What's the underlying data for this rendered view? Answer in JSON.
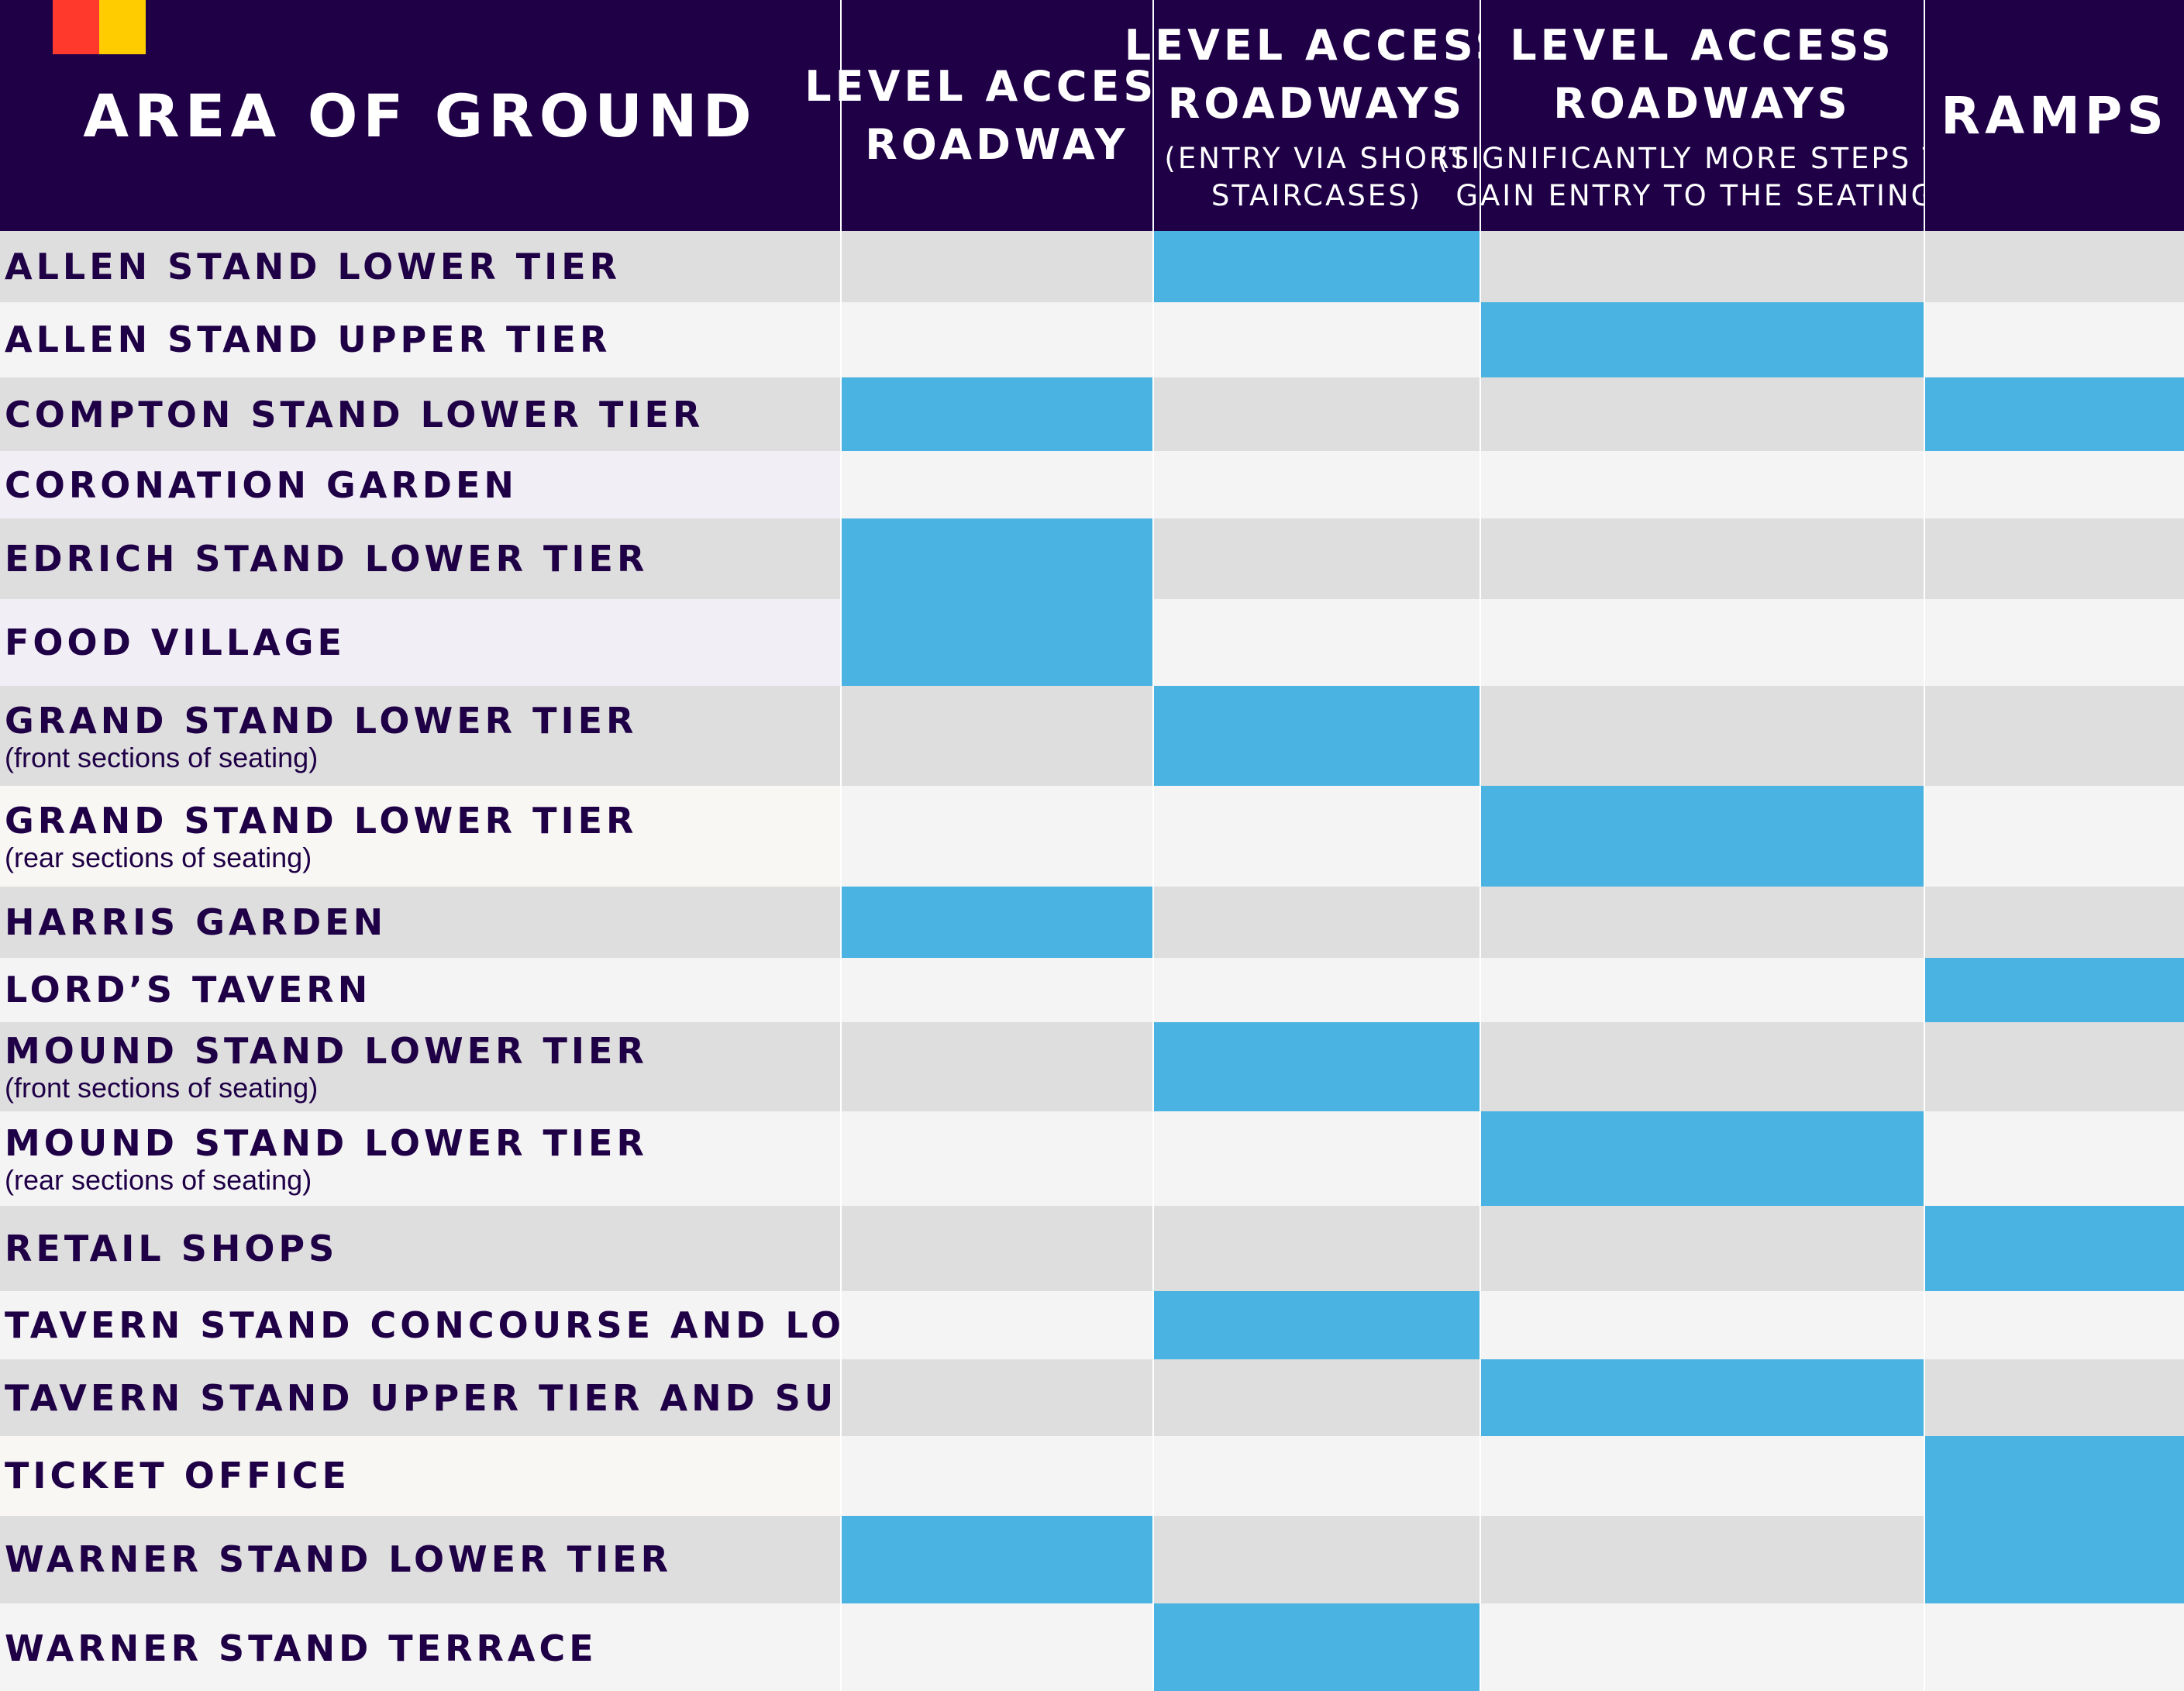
{
  "header": {
    "area": "AREA OF GROUND",
    "col1": {
      "title_1": "LEVEL ACCESS",
      "title_2": "ROADWAY",
      "sub_1": "",
      "sub_2": ""
    },
    "col2": {
      "title_1": "LEVEL ACCESS",
      "title_2": "ROADWAYS",
      "sub_1": "(ENTRY VIA SHORT",
      "sub_2": "STAIRCASES)"
    },
    "col3": {
      "title_1": "LEVEL ACCESS",
      "title_2": "ROADWAYS",
      "sub_1": "(SIGNIFICANTLY MORE STEPS TO",
      "sub_2": "GAIN ENTRY TO THE SEATING)"
    },
    "col4": {
      "title_1": "RAMPS"
    }
  },
  "brand_colors": {
    "red": "#ff3a2d",
    "yellow": "#ffcc00",
    "navy": "#1f0047",
    "mark": "#4ab3e2"
  },
  "rows": [
    {
      "name": "ALLEN STAND LOWER TIER",
      "note": "",
      "marks": [
        false,
        true,
        false,
        false
      ]
    },
    {
      "name": "ALLEN STAND UPPER TIER",
      "note": "",
      "marks": [
        false,
        false,
        true,
        false
      ]
    },
    {
      "name": "COMPTON STAND LOWER TIER",
      "note": "",
      "marks": [
        true,
        false,
        false,
        true
      ]
    },
    {
      "name": "CORONATION GARDEN",
      "note": "",
      "marks": [
        false,
        false,
        false,
        false
      ]
    },
    {
      "name": "EDRICH STAND LOWER TIER",
      "note": "",
      "marks": [
        true,
        false,
        false,
        false
      ]
    },
    {
      "name": "FOOD VILLAGE",
      "note": "",
      "marks": [
        true,
        false,
        false,
        false
      ]
    },
    {
      "name": "GRAND STAND LOWER TIER",
      "note": "(front sections of seating)",
      "marks": [
        false,
        true,
        false,
        false
      ]
    },
    {
      "name": "GRAND STAND LOWER TIER",
      "note": "(rear sections of seating)",
      "marks": [
        false,
        false,
        true,
        false
      ]
    },
    {
      "name": "HARRIS GARDEN",
      "note": "",
      "marks": [
        true,
        false,
        false,
        false
      ]
    },
    {
      "name": "LORD’S TAVERN",
      "note": "",
      "marks": [
        false,
        false,
        false,
        true
      ]
    },
    {
      "name": "MOUND STAND LOWER TIER",
      "note": "(front sections of seating)",
      "marks": [
        false,
        true,
        false,
        false
      ]
    },
    {
      "name": "MOUND STAND LOWER TIER",
      "note": "(rear sections of seating)",
      "marks": [
        false,
        false,
        true,
        false
      ]
    },
    {
      "name": "RETAIL SHOPS",
      "note": "",
      "marks": [
        false,
        false,
        false,
        true
      ]
    },
    {
      "name": "TAVERN STAND CONCOURSE AND LOWER TIER",
      "note": "",
      "marks": [
        false,
        true,
        false,
        false
      ]
    },
    {
      "name": "TAVERN STAND UPPER TIER AND SUITES",
      "note": "",
      "marks": [
        false,
        false,
        true,
        false
      ]
    },
    {
      "name": "TICKET OFFICE",
      "note": "",
      "marks": [
        false,
        false,
        false,
        true
      ]
    },
    {
      "name": "WARNER STAND LOWER TIER",
      "note": "",
      "marks": [
        true,
        false,
        false,
        true
      ]
    },
    {
      "name": "WARNER STAND TERRACE",
      "note": "",
      "marks": [
        false,
        true,
        false,
        false
      ]
    }
  ]
}
